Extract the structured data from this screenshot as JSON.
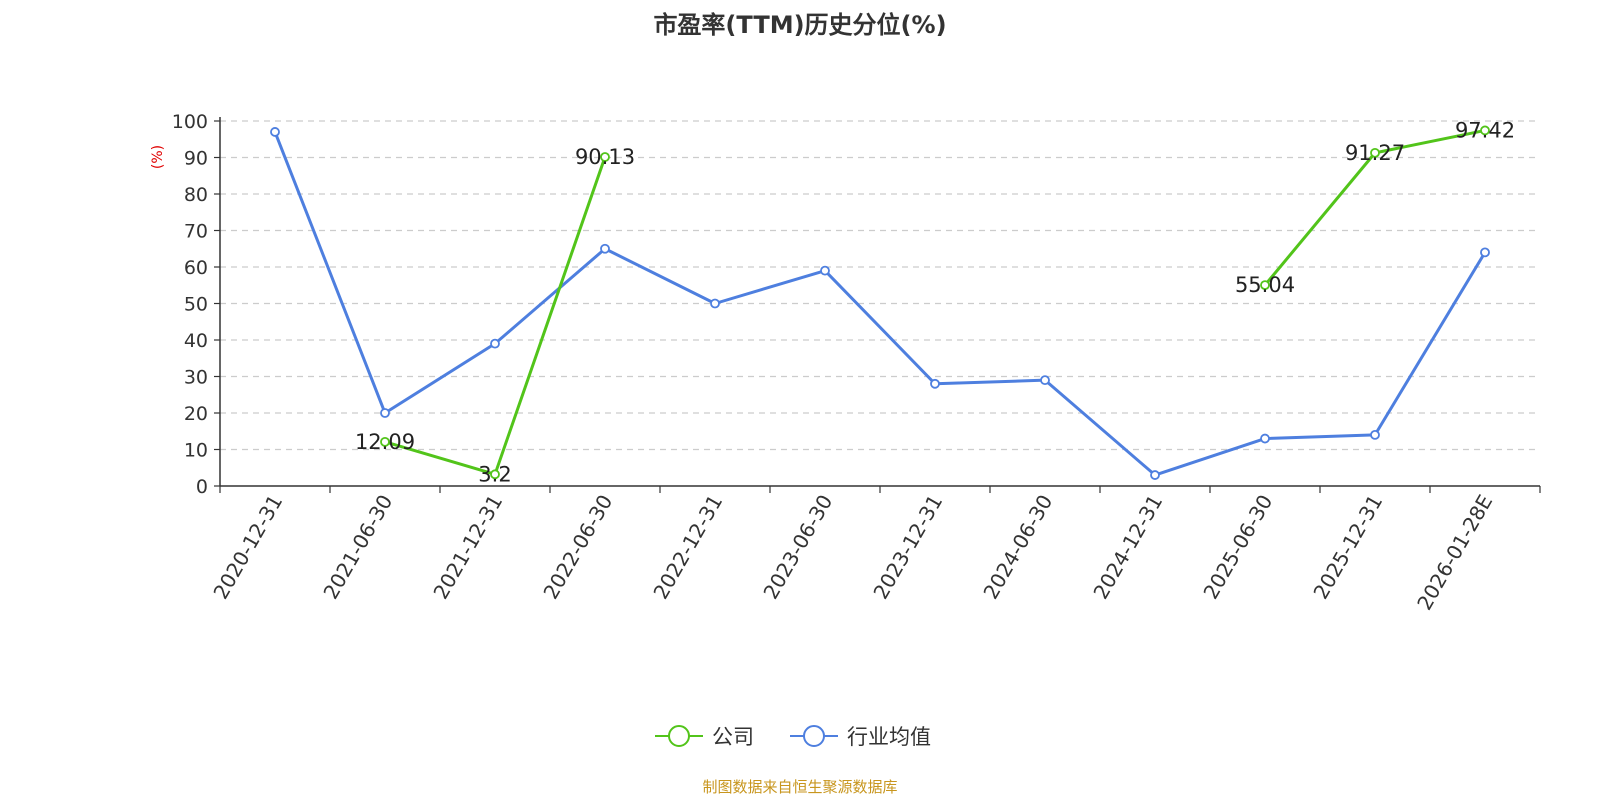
{
  "chart_data": {
    "type": "line",
    "title": "市盈率(TTM)历史分位(%)",
    "y_unit": "(%)",
    "ylim": [
      0,
      100
    ],
    "y_ticks": [
      0,
      10,
      20,
      30,
      40,
      50,
      60,
      70,
      80,
      90,
      100
    ],
    "grid": "horizontal-dashed",
    "legend_position": "bottom-center",
    "categories": [
      "2020-12-31",
      "2021-06-30",
      "2021-12-31",
      "2022-06-30",
      "2022-12-31",
      "2023-06-30",
      "2023-12-31",
      "2024-06-30",
      "2024-12-31",
      "2025-06-30",
      "2025-12-31",
      "2026-01-28E"
    ],
    "series": [
      {
        "name": "公司",
        "color": "#52c41a",
        "show_labels": true,
        "values": [
          null,
          12.09,
          3.2,
          90.13,
          null,
          null,
          null,
          null,
          null,
          55.04,
          91.27,
          97.42
        ],
        "labels": [
          null,
          "12.09",
          "3.2",
          "90.13",
          null,
          null,
          null,
          null,
          null,
          "55.04",
          "91.27",
          "97.42"
        ]
      },
      {
        "name": "行业均值",
        "color": "#4e7fdf",
        "show_labels": false,
        "values": [
          97,
          20,
          39,
          65,
          50,
          59,
          28,
          29,
          3,
          13,
          14,
          64
        ]
      }
    ],
    "source": "制图数据来自恒生聚源数据库"
  }
}
